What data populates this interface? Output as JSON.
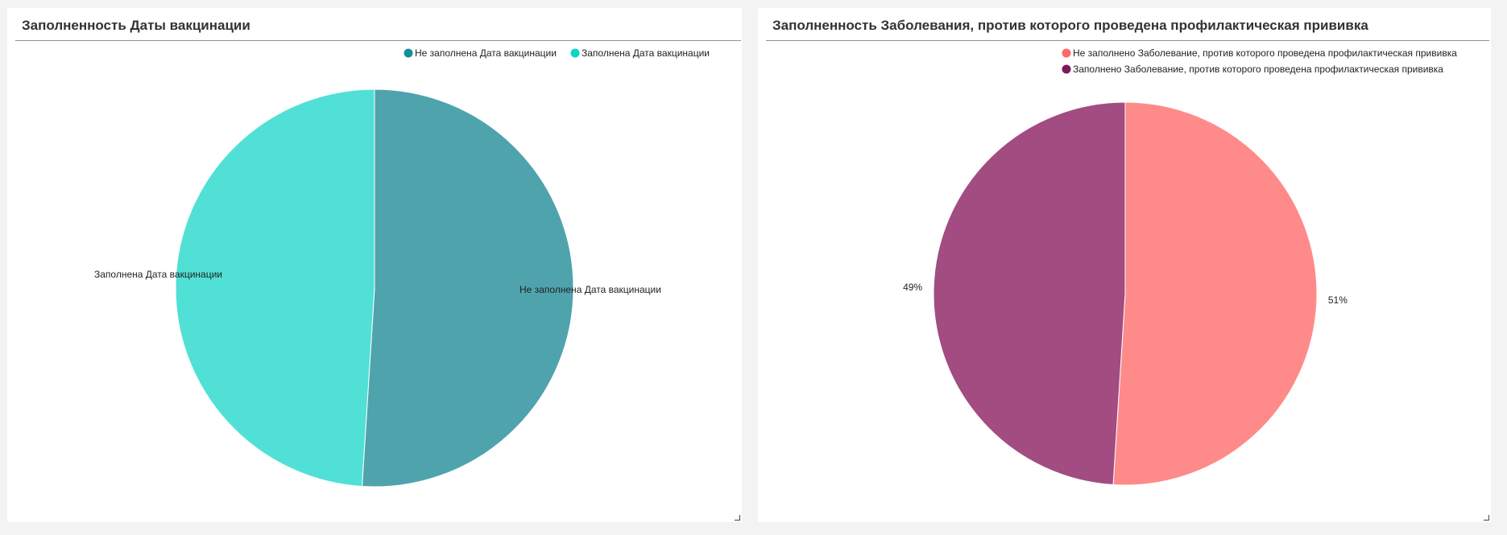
{
  "panels": {
    "left": {
      "title": "Заполненность Даты вакцинации"
    },
    "right": {
      "title": "Заполненность Заболевания, против которого проведена профилактическая прививка"
    }
  },
  "chart_data": [
    {
      "type": "pie",
      "title": "Заполненность Даты вакцинации",
      "legend_position": "top-right",
      "label_mode": "category",
      "slices": [
        {
          "label": "Не заполнена Дата вакцинации",
          "value": 51,
          "color": "#4fa3ad",
          "legend_color": "#168e97"
        },
        {
          "label": "Заполнена Дата вакцинации",
          "value": 49,
          "color": "#50e0d6",
          "legend_color": "#10d3c7"
        }
      ]
    },
    {
      "type": "pie",
      "title": "Заполненность Заболевания, против которого проведена профилактическая прививка",
      "legend_position": "top-right",
      "label_mode": "percent",
      "slices": [
        {
          "label": "Не заполнено Заболевание, против которого проведена профилактическая прививка",
          "value": 51,
          "display": "51%",
          "color": "#ff8a8a",
          "legend_color": "#fd6b6b"
        },
        {
          "label": "Заполнено Заболевание, против которого проведена профилактическая прививка",
          "value": 49,
          "display": "49%",
          "color": "#a24c82",
          "legend_color": "#7a1a5c"
        }
      ]
    }
  ]
}
